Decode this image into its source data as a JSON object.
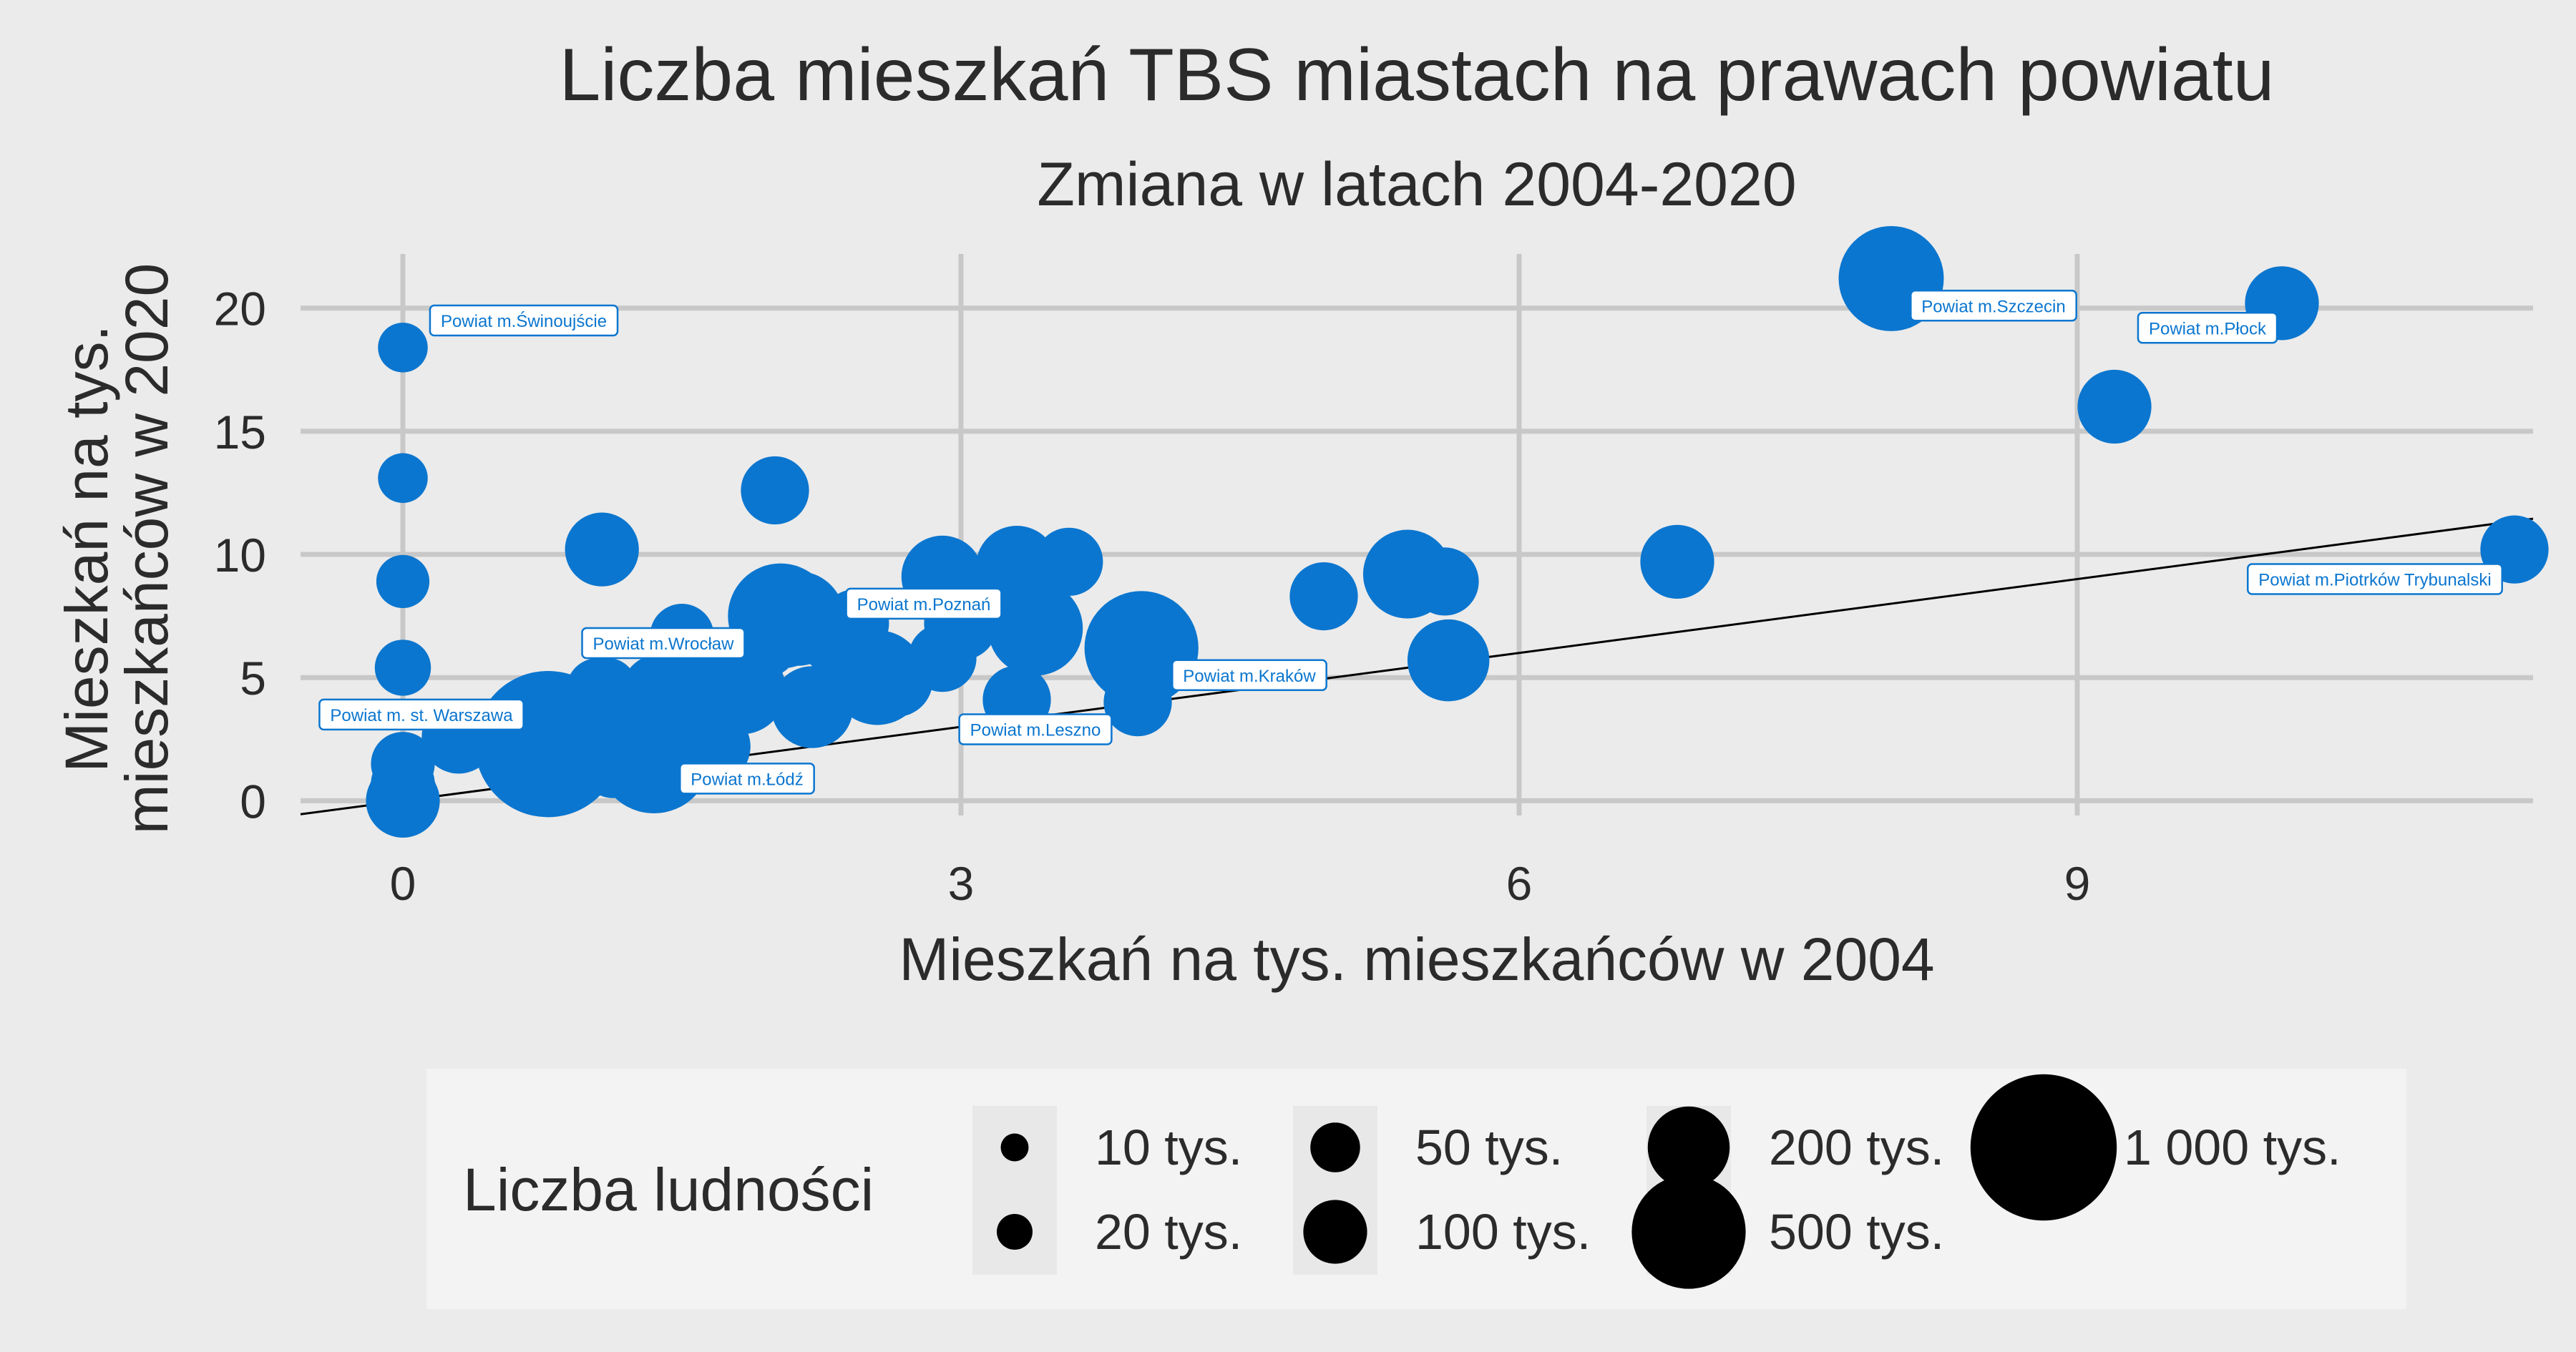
{
  "chart_data": {
    "type": "scatter",
    "title": "Liczba mieszkań TBS miastach na prawach powiatu",
    "subtitle": "Zmiana w latach 2004-2020",
    "xlabel": "Mieszkań na tys. mieszkańców w 2004",
    "ylabel_lines": [
      "Mieszkań na tys.",
      "mieszkańców w 2020"
    ],
    "xlim": [
      -0.55,
      11.45
    ],
    "ylim": [
      -0.6,
      22.2
    ],
    "x_ticks": [
      0,
      3,
      6,
      9
    ],
    "y_ticks": [
      0,
      5,
      10,
      15,
      20
    ],
    "grid": true,
    "reference_line": {
      "slope": 1,
      "intercept": 0
    },
    "colors": {
      "points": "#0b76cf",
      "label_border": "#0b76cf",
      "background": "#ebebeb",
      "legend_background": "#f3f3f3"
    },
    "points": [
      {
        "x": 0.0,
        "y": 18.4,
        "pop": 50
      },
      {
        "x": 0.0,
        "y": 13.1,
        "pop": 50
      },
      {
        "x": 0.0,
        "y": 8.9,
        "pop": 60
      },
      {
        "x": 0.0,
        "y": 5.4,
        "pop": 70
      },
      {
        "x": 0.0,
        "y": 1.5,
        "pop": 100
      },
      {
        "x": 0.0,
        "y": 0.7,
        "pop": 100
      },
      {
        "x": 0.0,
        "y": 0.3,
        "pop": 120
      },
      {
        "x": 0.0,
        "y": 0.0,
        "pop": 150
      },
      {
        "x": 0.3,
        "y": 2.6,
        "pop": 150
      },
      {
        "x": 0.78,
        "y": 2.3,
        "pop": 1000
      },
      {
        "x": 0.95,
        "y": 2.6,
        "pop": 150
      },
      {
        "x": 0.98,
        "y": 3.0,
        "pop": 100
      },
      {
        "x": 1.05,
        "y": 4.5,
        "pop": 100
      },
      {
        "x": 1.1,
        "y": 4.6,
        "pop": 80
      },
      {
        "x": 1.07,
        "y": 10.2,
        "pop": 150
      },
      {
        "x": 1.13,
        "y": 1.4,
        "pop": 100
      },
      {
        "x": 1.35,
        "y": 1.8,
        "pop": 500
      },
      {
        "x": 1.4,
        "y": 4.2,
        "pop": 250
      },
      {
        "x": 1.5,
        "y": 6.7,
        "pop": 100
      },
      {
        "x": 1.6,
        "y": 5.2,
        "pop": 120
      },
      {
        "x": 1.6,
        "y": 3.5,
        "pop": 120
      },
      {
        "x": 1.67,
        "y": 2.2,
        "pop": 150
      },
      {
        "x": 1.75,
        "y": 5.7,
        "pop": 100
      },
      {
        "x": 1.82,
        "y": 4.5,
        "pop": 250
      },
      {
        "x": 1.95,
        "y": 6.3,
        "pop": 100
      },
      {
        "x": 2.0,
        "y": 12.6,
        "pop": 120
      },
      {
        "x": 2.03,
        "y": 7.5,
        "pop": 400
      },
      {
        "x": 2.12,
        "y": 7.4,
        "pop": 300
      },
      {
        "x": 2.2,
        "y": 3.8,
        "pop": 200
      },
      {
        "x": 2.33,
        "y": 6.6,
        "pop": 150
      },
      {
        "x": 2.43,
        "y": 7.2,
        "pop": 120
      },
      {
        "x": 2.55,
        "y": 5.0,
        "pop": 300
      },
      {
        "x": 2.65,
        "y": 4.9,
        "pop": 150
      },
      {
        "x": 2.9,
        "y": 9.1,
        "pop": 200
      },
      {
        "x": 2.97,
        "y": 8.8,
        "pop": 120
      },
      {
        "x": 2.9,
        "y": 5.8,
        "pop": 120
      },
      {
        "x": 3.0,
        "y": 7.2,
        "pop": 150
      },
      {
        "x": 3.3,
        "y": 9.5,
        "pop": 200
      },
      {
        "x": 3.3,
        "y": 4.1,
        "pop": 120
      },
      {
        "x": 3.4,
        "y": 7.0,
        "pop": 300
      },
      {
        "x": 3.58,
        "y": 9.7,
        "pop": 120
      },
      {
        "x": 3.95,
        "y": 4.0,
        "pop": 120
      },
      {
        "x": 3.97,
        "y": 6.2,
        "pop": 500
      },
      {
        "x": 4.95,
        "y": 8.3,
        "pop": 120
      },
      {
        "x": 5.4,
        "y": 9.2,
        "pop": 250
      },
      {
        "x": 5.6,
        "y": 8.9,
        "pop": 120
      },
      {
        "x": 5.62,
        "y": 5.7,
        "pop": 200
      },
      {
        "x": 6.85,
        "y": 9.7,
        "pop": 150
      },
      {
        "x": 8.0,
        "y": 21.2,
        "pop": 400
      },
      {
        "x": 9.2,
        "y": 16.0,
        "pop": 150
      },
      {
        "x": 10.1,
        "y": 20.2,
        "pop": 150
      },
      {
        "x": 11.35,
        "y": 10.2,
        "pop": 120
      }
    ],
    "labels": [
      {
        "text": "Powiat m.Świnoujście",
        "x": 0.0,
        "y": 18.4,
        "lx": 0.65,
        "ly": 19.5
      },
      {
        "text": "Powiat m. st. Warszawa",
        "x": 0.78,
        "y": 2.3,
        "lx": 0.1,
        "ly": 3.5
      },
      {
        "text": "Powiat m.Wrocław",
        "x": 1.6,
        "y": 5.5,
        "lx": 1.4,
        "ly": 6.4
      },
      {
        "text": "Powiat m.Łódź",
        "x": 1.35,
        "y": 1.8,
        "lx": 1.85,
        "ly": 0.9
      },
      {
        "text": "Powiat m.Poznań",
        "x": 2.45,
        "y": 7.2,
        "lx": 2.8,
        "ly": 8.0
      },
      {
        "text": "Powiat m.Leszno",
        "x": 3.3,
        "y": 4.1,
        "lx": 3.4,
        "ly": 2.9
      },
      {
        "text": "Powiat m.Kraków",
        "x": 3.97,
        "y": 6.2,
        "lx": 4.55,
        "ly": 5.1
      },
      {
        "text": "Powiat m.Szczecin",
        "x": 8.0,
        "y": 21.2,
        "lx": 8.55,
        "ly": 20.1
      },
      {
        "text": "Powiat m.Płock",
        "x": 10.1,
        "y": 20.2,
        "lx": 9.7,
        "ly": 19.2
      },
      {
        "text": "Powiat m.Piotrków Trybunalski",
        "x": 11.35,
        "y": 10.2,
        "lx": 10.6,
        "ly": 9.0
      }
    ],
    "legend": {
      "title": "Liczba ludności",
      "position": "bottom",
      "items": [
        {
          "label": "10 tys.",
          "pop": 10
        },
        {
          "label": "20 tys.",
          "pop": 20
        },
        {
          "label": "50 tys.",
          "pop": 50
        },
        {
          "label": "100 tys.",
          "pop": 100
        },
        {
          "label": "200 tys.",
          "pop": 200
        },
        {
          "label": "500 tys.",
          "pop": 500
        },
        {
          "label": "1 000 tys.",
          "pop": 1000
        }
      ]
    }
  }
}
